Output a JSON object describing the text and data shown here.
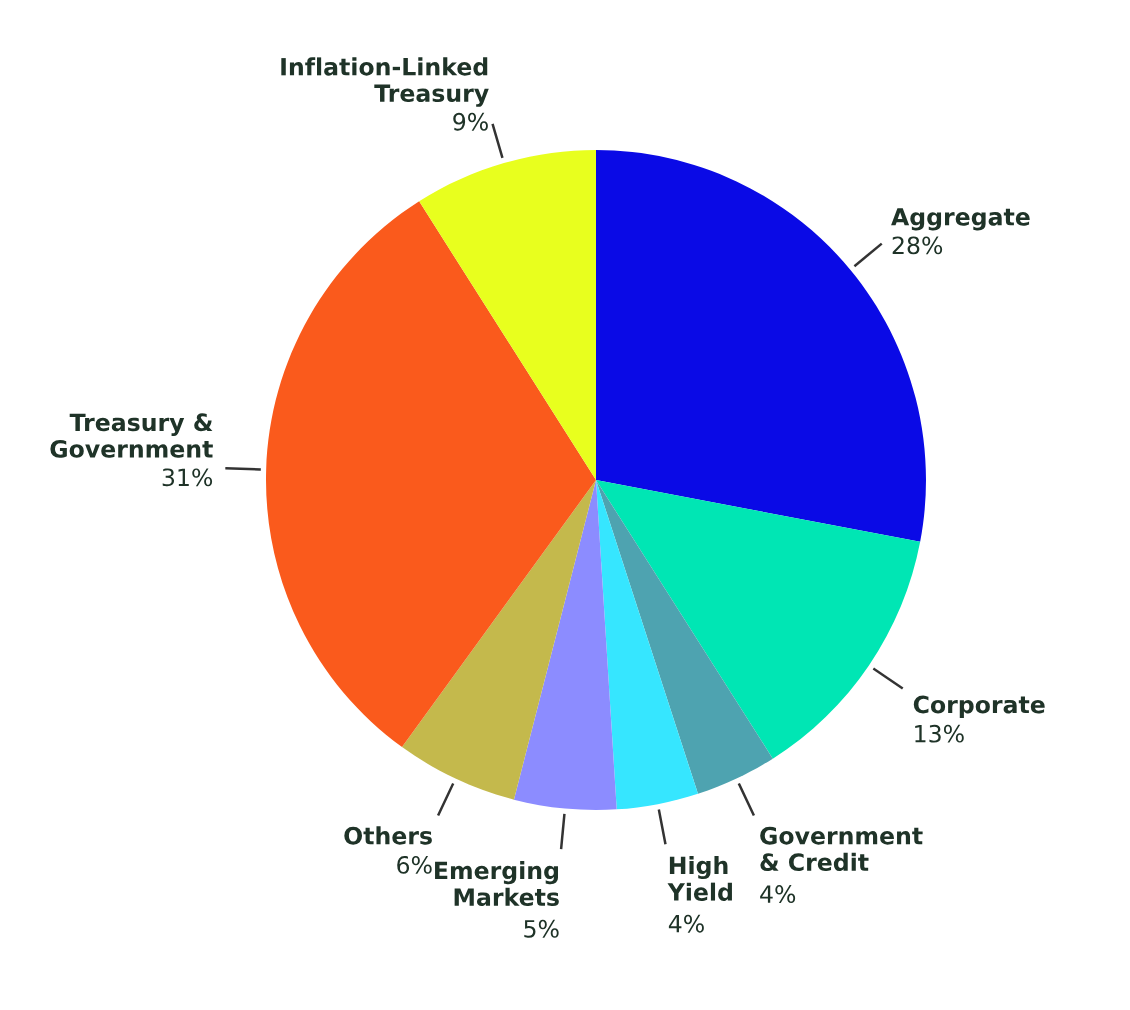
{
  "chart_data": {
    "type": "pie",
    "categories": [
      "Aggregate",
      "Corporate",
      "Government\n& Credit",
      "High\nYield",
      "Emerging\nMarkets",
      "Others",
      "Treasury &\nGovernment",
      "Inflation-Linked\nTreasury"
    ],
    "values": [
      28,
      13,
      4,
      4,
      5,
      6,
      31,
      9
    ],
    "value_labels": [
      "28%",
      "13%",
      "4%",
      "4%",
      "5%",
      "6%",
      "31%",
      "9%"
    ],
    "colors": [
      "#0a0ae6",
      "#00e6b4",
      "#4ea3b0",
      "#36e6ff",
      "#8c8cff",
      "#c4b94c",
      "#fa5a1c",
      "#e8ff1e"
    ]
  }
}
